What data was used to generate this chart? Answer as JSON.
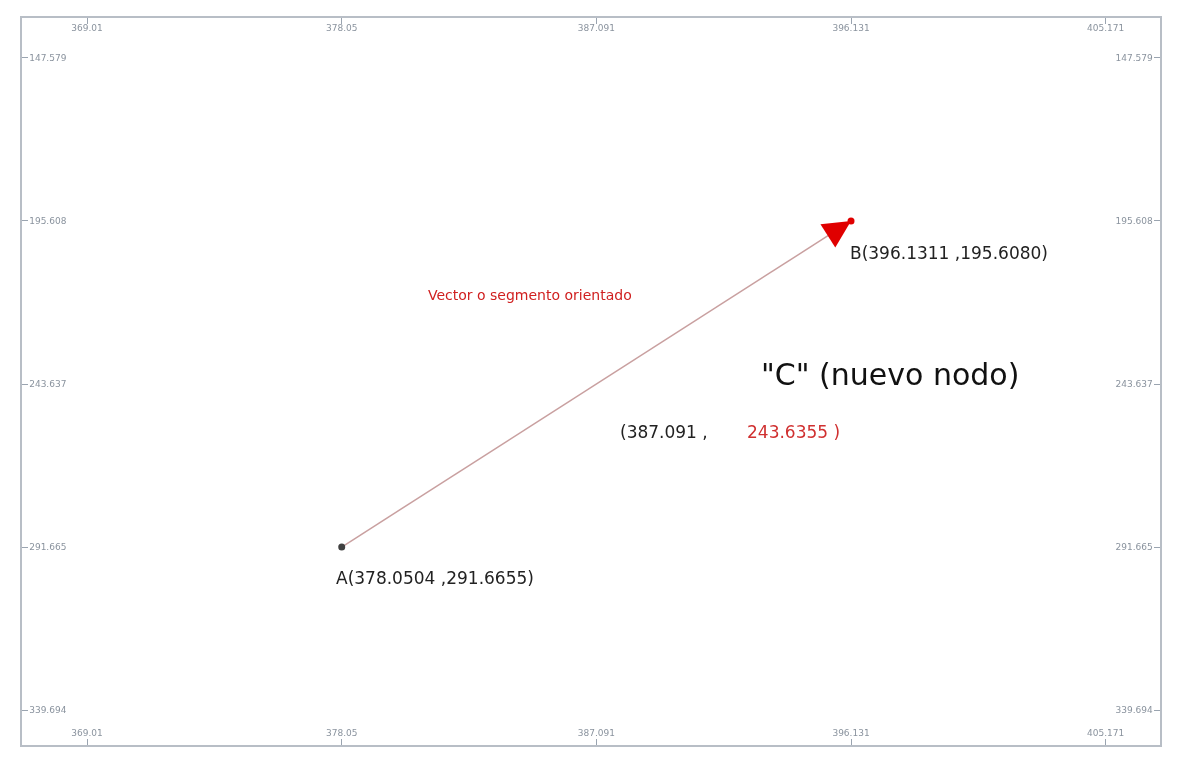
{
  "chart_data": {
    "type": "line",
    "marker": "circle",
    "grid": false,
    "x": [
      378.0504,
      396.1311
    ],
    "series": [
      {
        "color": "#c9a0a0",
        "colors": [
          "#404040",
          "#e00000"
        ],
        "values": [
          291.6655,
          195.608
        ]
      }
    ],
    "xlim": [
      366.7,
      407.1
    ],
    "xticks": [
      369.01,
      378.05,
      387.091,
      396.131,
      405.171
    ],
    "x2lim": [
      366.7,
      407.1
    ],
    "x2ticks": [
      369.01,
      378.05,
      387.091,
      396.131,
      405.171
    ],
    "ylim": [
      350.0,
      135.8
    ],
    "yticks": [
      147.579,
      195.608,
      243.637,
      291.665,
      339.694
    ],
    "y2lim": [
      350.0,
      135.8
    ],
    "y2ticks": [
      147.579,
      195.608,
      243.637,
      291.665,
      339.694
    ],
    "annotations": [
      {
        "text": "A(378.0504 ,291.6655)",
        "x": 378.0504,
        "y": 291.6655
      },
      {
        "text": "B(396.1311 ,195.6080)",
        "x": 396.1311,
        "y": 195.608
      },
      "Vector o segmento orientado",
      "\"C\" (nuevo nodo)",
      "(387.091 ,",
      "243.6355 )"
    ]
  }
}
